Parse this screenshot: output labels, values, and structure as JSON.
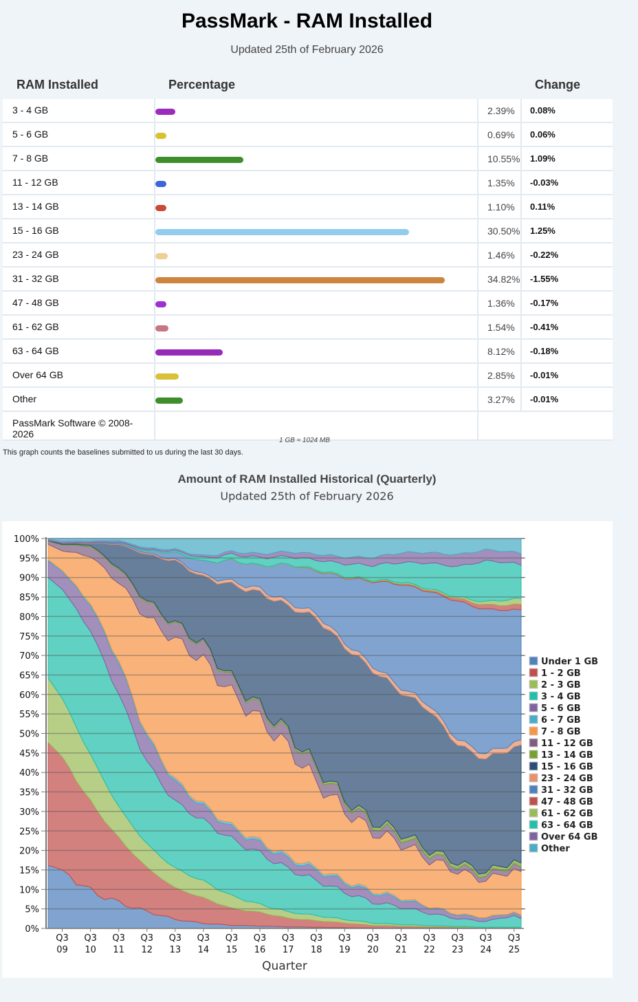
{
  "header": {
    "title": "PassMark - RAM Installed",
    "updated": "Updated 25th of February 2026"
  },
  "table": {
    "columns": [
      "RAM Installed",
      "Percentage",
      "Change"
    ],
    "rows": [
      {
        "label": "3 - 4 GB",
        "percent": 2.39,
        "percent_text": "2.39%",
        "change": "0.08%",
        "change_sign": "pos",
        "bar_color": "#9a2bbd"
      },
      {
        "label": "5 - 6 GB",
        "percent": 0.69,
        "percent_text": "0.69%",
        "change": "0.06%",
        "change_sign": "pos",
        "bar_color": "#d9c232"
      },
      {
        "label": "7 - 8 GB",
        "percent": 10.55,
        "percent_text": "10.55%",
        "change": "1.09%",
        "change_sign": "pos",
        "bar_color": "#3e8e2b"
      },
      {
        "label": "11 - 12 GB",
        "percent": 1.35,
        "percent_text": "1.35%",
        "change": "-0.03%",
        "change_sign": "neg",
        "bar_color": "#3e66d8"
      },
      {
        "label": "13 - 14 GB",
        "percent": 1.1,
        "percent_text": "1.10%",
        "change": "0.11%",
        "change_sign": "pos",
        "bar_color": "#c94a35"
      },
      {
        "label": "15 - 16 GB",
        "percent": 30.5,
        "percent_text": "30.50%",
        "change": "1.25%",
        "change_sign": "pos",
        "bar_color": "#92cdee"
      },
      {
        "label": "23 - 24 GB",
        "percent": 1.46,
        "percent_text": "1.46%",
        "change": "-0.22%",
        "change_sign": "neg",
        "bar_color": "#f0cf96"
      },
      {
        "label": "31 - 32 GB",
        "percent": 34.82,
        "percent_text": "34.82%",
        "change": "-1.55%",
        "change_sign": "neg",
        "bar_color": "#cd843f"
      },
      {
        "label": "47 - 48 GB",
        "percent": 1.36,
        "percent_text": "1.36%",
        "change": "-0.17%",
        "change_sign": "neg",
        "bar_color": "#9a31d0"
      },
      {
        "label": "61 - 62 GB",
        "percent": 1.54,
        "percent_text": "1.54%",
        "change": "-0.41%",
        "change_sign": "neg",
        "bar_color": "#c77782"
      },
      {
        "label": "63 - 64 GB",
        "percent": 8.12,
        "percent_text": "8.12%",
        "change": "-0.18%",
        "change_sign": "neg",
        "bar_color": "#962bb8"
      },
      {
        "label": "Over 64 GB",
        "percent": 2.85,
        "percent_text": "2.85%",
        "change": "-0.01%",
        "change_sign": "neg",
        "bar_color": "#d9c23a"
      },
      {
        "label": "Other",
        "percent": 3.27,
        "percent_text": "3.27%",
        "change": "-0.01%",
        "change_sign": "neg",
        "bar_color": "#3e8e2b"
      }
    ],
    "footer": "PassMark Software © 2008-2026"
  },
  "notes": {
    "gb_note": "1 GB ≈ 1024 MB",
    "baseline_note": "This graph counts the baselines submitted to us during the last 30 days."
  },
  "historical": {
    "title": "Amount of RAM Installed Historical (Quarterly)",
    "updated": "Updated 25th of February 2026"
  },
  "chart_data": {
    "type": "area",
    "stacked": true,
    "title": "Amount of RAM Installed Historical (Quarterly)",
    "xlabel": "Quarter",
    "ylabel": "",
    "ylim": [
      0,
      100
    ],
    "yticks": [
      "0%",
      "5%",
      "10%",
      "15%",
      "20%",
      "25%",
      "30%",
      "35%",
      "40%",
      "45%",
      "50%",
      "55%",
      "60%",
      "65%",
      "70%",
      "75%",
      "80%",
      "85%",
      "90%",
      "95%",
      "100%"
    ],
    "x_anchor_quarters": [
      "Q1 09",
      "Q3 09",
      "Q3 10",
      "Q3 11",
      "Q3 12",
      "Q3 13",
      "Q3 14",
      "Q3 15",
      "Q3 16",
      "Q3 17",
      "Q3 18",
      "Q3 19",
      "Q3 20",
      "Q3 21",
      "Q3 22",
      "Q3 23",
      "Q3 24",
      "Q3 25",
      "Q4 25"
    ],
    "xtick_labels": [
      [
        "Q3",
        "09"
      ],
      [
        "Q3",
        "10"
      ],
      [
        "Q3",
        "11"
      ],
      [
        "Q3",
        "12"
      ],
      [
        "Q3",
        "13"
      ],
      [
        "Q3",
        "14"
      ],
      [
        "Q3",
        "15"
      ],
      [
        "Q3",
        "16"
      ],
      [
        "Q3",
        "17"
      ],
      [
        "Q3",
        "18"
      ],
      [
        "Q3",
        "19"
      ],
      [
        "Q3",
        "20"
      ],
      [
        "Q3",
        "21"
      ],
      [
        "Q3",
        "22"
      ],
      [
        "Q3",
        "23"
      ],
      [
        "Q3",
        "24"
      ],
      [
        "Q3",
        "25"
      ]
    ],
    "legend_position": "right",
    "grid": true,
    "series": [
      {
        "name": "Under 1 GB",
        "color": "#4f81bd",
        "values": [
          16.2,
          15.0,
          9.5,
          6.6,
          4.3,
          2.3,
          1.3,
          0.8,
          0.6,
          0.4,
          0.3,
          0.2,
          0.1,
          0.1,
          0.1,
          0.1,
          0.1,
          0.1,
          0.1
        ]
      },
      {
        "name": "1 - 2 GB",
        "color": "#c0504d",
        "values": [
          31.5,
          29.0,
          23.0,
          16.5,
          11.2,
          8.0,
          6.5,
          4.3,
          3.5,
          2.2,
          1.7,
          1.2,
          0.7,
          0.5,
          0.3,
          0.2,
          0.1,
          0.1,
          0.1
        ]
      },
      {
        "name": "2 - 3 GB",
        "color": "#9bbb59",
        "values": [
          16.5,
          15.0,
          12.0,
          8.0,
          6.0,
          5.0,
          4.3,
          3.2,
          2.0,
          1.6,
          1.3,
          0.9,
          0.6,
          0.4,
          0.3,
          0.2,
          0.1,
          0.1,
          0.1
        ]
      },
      {
        "name": "3 - 4 GB",
        "color": "#23bfaa",
        "values": [
          25.8,
          28.0,
          32.0,
          29.0,
          21.0,
          17.0,
          15.5,
          14.5,
          13.0,
          11.0,
          9.0,
          7.0,
          5.5,
          4.5,
          3.2,
          2.0,
          1.5,
          3.0,
          2.2
        ]
      },
      {
        "name": "5 - 6 GB",
        "color": "#8064a2",
        "values": [
          4.3,
          4.5,
          6.5,
          8.0,
          6.5,
          5.0,
          3.5,
          2.8,
          2.5,
          2.5,
          2.6,
          2.5,
          2.4,
          2.0,
          1.5,
          1.0,
          0.8,
          0.7,
          0.7
        ]
      },
      {
        "name": "6 - 7 GB",
        "color": "#4bacc6",
        "values": [
          0.3,
          0.3,
          0.5,
          0.6,
          0.6,
          0.6,
          0.6,
          0.6,
          0.6,
          0.6,
          0.6,
          0.5,
          0.5,
          0.4,
          0.3,
          0.2,
          0.2,
          0.2,
          0.2
        ]
      },
      {
        "name": "7 - 8 GB",
        "color": "#f79646",
        "values": [
          3.9,
          5.0,
          12.0,
          20.0,
          30.0,
          36.0,
          37.0,
          34.0,
          31.0,
          28.0,
          22.0,
          18.0,
          15.5,
          14.0,
          12.0,
          11.0,
          9.5,
          11.0,
          11.0
        ]
      },
      {
        "name": "11 - 12 GB",
        "color": "#7f6084",
        "values": [
          0.8,
          1.5,
          2.5,
          3.5,
          4.0,
          4.0,
          4.0,
          3.5,
          3.0,
          3.5,
          3.5,
          2.5,
          2.0,
          1.8,
          1.5,
          1.3,
          1.2,
          1.2,
          1.2
        ]
      },
      {
        "name": "13 - 14 GB",
        "color": "#77a033",
        "values": [
          0.1,
          0.2,
          0.3,
          0.3,
          0.3,
          0.3,
          0.3,
          0.4,
          0.4,
          0.5,
          0.6,
          0.6,
          0.8,
          0.9,
          0.9,
          0.9,
          0.9,
          1.0,
          1.0
        ]
      },
      {
        "name": "15 - 16 GB",
        "color": "#2c4d75",
        "values": [
          0.1,
          0.3,
          0.5,
          6.0,
          12.0,
          16.0,
          17.0,
          24.0,
          29.0,
          32.0,
          38.0,
          39.0,
          39.5,
          36.0,
          36.0,
          30.0,
          29.0,
          29.0,
          30.0
        ]
      },
      {
        "name": "23 - 24 GB",
        "color": "#e8916b",
        "values": [
          0.0,
          0.0,
          0.1,
          0.2,
          0.3,
          0.4,
          0.6,
          0.8,
          1.0,
          1.0,
          1.1,
          1.1,
          1.2,
          1.2,
          1.3,
          1.3,
          1.3,
          1.3,
          1.3
        ]
      },
      {
        "name": "31 - 32 GB",
        "color": "#4f81bd",
        "values": [
          0.0,
          0.0,
          0.1,
          0.3,
          0.6,
          1.8,
          3.4,
          5.4,
          5.9,
          9.5,
          11.0,
          16.5,
          22.0,
          26.5,
          29.0,
          35.5,
          37.0,
          34.0,
          33.0
        ]
      },
      {
        "name": "47 - 48 GB",
        "color": "#c0504d",
        "values": [
          0.0,
          0.0,
          0.0,
          0.0,
          0.0,
          0.0,
          0.0,
          0.0,
          0.0,
          0.0,
          0.1,
          0.1,
          0.2,
          0.3,
          0.4,
          0.7,
          1.2,
          1.3,
          1.4
        ]
      },
      {
        "name": "61 - 62 GB",
        "color": "#9bbb59",
        "values": [
          0.0,
          0.0,
          0.0,
          0.0,
          0.0,
          0.0,
          0.0,
          0.1,
          0.1,
          0.1,
          0.2,
          0.2,
          0.2,
          0.3,
          0.3,
          0.4,
          0.8,
          1.5,
          1.5
        ]
      },
      {
        "name": "63 - 64 GB",
        "color": "#23bfaa",
        "values": [
          0.0,
          0.0,
          0.0,
          0.1,
          0.3,
          0.4,
          1.0,
          1.5,
          2.0,
          2.0,
          2.5,
          3.2,
          3.8,
          5.0,
          6.6,
          7.8,
          10.6,
          9.2,
          8.4
        ]
      },
      {
        "name": "Over 64 GB",
        "color": "#8064a2",
        "values": [
          0.3,
          0.5,
          0.4,
          0.4,
          0.4,
          0.4,
          0.5,
          0.7,
          1.0,
          1.2,
          1.5,
          1.7,
          2.0,
          2.5,
          2.7,
          3.0,
          2.8,
          2.8,
          2.9
        ]
      },
      {
        "name": "Other",
        "color": "#4bacc6",
        "values": [
          0.2,
          0.7,
          0.6,
          0.5,
          2.5,
          2.8,
          4.5,
          3.4,
          3.9,
          3.4,
          4.0,
          4.8,
          5.0,
          3.6,
          3.6,
          4.2,
          2.9,
          3.5,
          3.9
        ]
      }
    ]
  }
}
